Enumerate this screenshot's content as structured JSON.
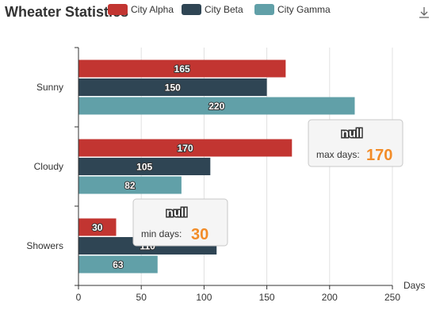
{
  "chart_data": {
    "type": "bar",
    "orientation": "horizontal",
    "title": "Wheater Statistics",
    "categories": [
      "Sunny",
      "Cloudy",
      "Showers"
    ],
    "series": [
      {
        "name": "City Alpha",
        "color": "#c23531",
        "values": [
          165,
          170,
          30
        ]
      },
      {
        "name": "City Beta",
        "color": "#2f4554",
        "values": [
          150,
          105,
          110
        ]
      },
      {
        "name": "City Gamma",
        "color": "#61a0a8",
        "values": [
          220,
          82,
          63
        ]
      }
    ],
    "xlabel": "Days",
    "xlim": [
      0,
      250
    ],
    "xticks": [
      0,
      50,
      100,
      150,
      200,
      250
    ],
    "grid": true,
    "legend_position": "top",
    "mark_points": [
      {
        "series": "City Alpha",
        "title": "null",
        "label": "max days:",
        "value": 170,
        "category": "Cloudy"
      },
      {
        "series": "City Alpha",
        "title": "null",
        "label": "min days:",
        "value": 30,
        "category": "Showers"
      }
    ],
    "toolbox": {
      "icon": "download-icon"
    }
  }
}
